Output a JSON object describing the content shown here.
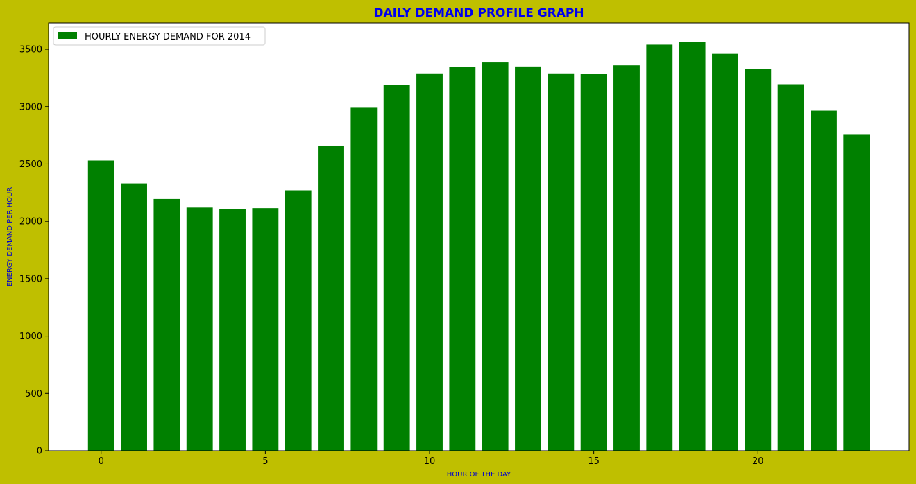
{
  "chart_data": {
    "type": "bar",
    "title": "DAILY DEMAND PROFILE GRAPH",
    "xlabel": "HOUR OF THE DAY",
    "ylabel": "ENERGY DEMAND PER HOUR",
    "legend": {
      "label": "HOURLY ENERGY DEMAND FOR 2014",
      "placement": "top-left"
    },
    "x": [
      0,
      1,
      2,
      3,
      4,
      5,
      6,
      7,
      8,
      9,
      10,
      11,
      12,
      13,
      14,
      15,
      16,
      17,
      18,
      19,
      20,
      21,
      22,
      23
    ],
    "values": [
      2530,
      2330,
      2195,
      2120,
      2105,
      2115,
      2270,
      2660,
      2990,
      3190,
      3290,
      3345,
      3385,
      3350,
      3290,
      3285,
      3360,
      3540,
      3565,
      3460,
      3330,
      3195,
      2965,
      2760
    ],
    "xlim": [
      -1.6,
      24.6
    ],
    "ylim": [
      0,
      3730
    ],
    "xticks": [
      0,
      5,
      10,
      15,
      20
    ],
    "yticks": [
      0,
      500,
      1000,
      1500,
      2000,
      2500,
      3000,
      3500
    ],
    "grid": false,
    "colors": {
      "bar": "#008000",
      "figure_background": "#bfbf00",
      "plot_background": "#ffffff",
      "title": "#0000ee",
      "axis_label": "#0000cc"
    }
  }
}
